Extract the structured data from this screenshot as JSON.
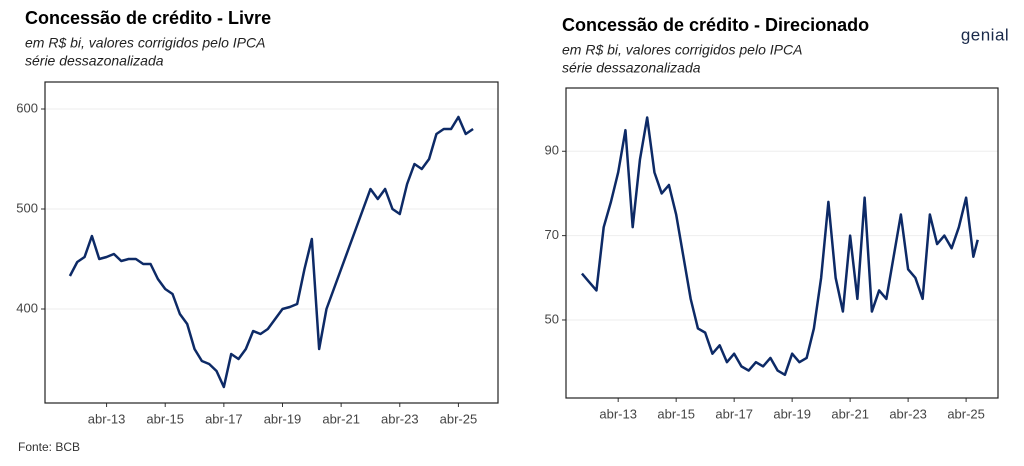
{
  "chart_data": [
    {
      "type": "line",
      "title": "Concessão de crédito - Livre",
      "subtitle": [
        "em R$ bi, valores corrigidos pelo IPCA",
        "série dessazonalizada"
      ],
      "x": [
        2012.0,
        2012.25,
        2012.5,
        2012.75,
        2013.0,
        2013.25,
        2013.5,
        2013.75,
        2014.0,
        2014.25,
        2014.5,
        2014.75,
        2015.0,
        2015.25,
        2015.5,
        2015.75,
        2016.0,
        2016.25,
        2016.5,
        2016.75,
        2017.0,
        2017.25,
        2017.5,
        2017.75,
        2018.0,
        2018.25,
        2018.5,
        2018.75,
        2019.0,
        2019.25,
        2019.5,
        2019.75,
        2020.0,
        2020.25,
        2020.5,
        2020.75,
        2021.0,
        2021.25,
        2021.5,
        2021.75,
        2022.0,
        2022.25,
        2022.5,
        2022.75,
        2023.0,
        2023.25,
        2023.5,
        2023.75,
        2024.0,
        2024.25,
        2024.5,
        2024.75,
        2025.0,
        2025.25,
        2025.5,
        2025.75
      ],
      "values": [
        433,
        447,
        452,
        473,
        450,
        452,
        455,
        448,
        450,
        450,
        445,
        445,
        430,
        420,
        415,
        395,
        385,
        360,
        348,
        345,
        338,
        322,
        355,
        350,
        360,
        378,
        375,
        380,
        390,
        400,
        402,
        405,
        440,
        470,
        360,
        400,
        420,
        440,
        460,
        480,
        500,
        520,
        510,
        520,
        500,
        495,
        525,
        545,
        540,
        550,
        575,
        580,
        580,
        592,
        575,
        580
      ],
      "color": "#0d2a66",
      "xlim": [
        2011.15,
        2026.6
      ],
      "xticks": [
        {
          "value": 2013.25,
          "label": "abr-13"
        },
        {
          "value": 2015.25,
          "label": "abr-15"
        },
        {
          "value": 2017.25,
          "label": "abr-17"
        },
        {
          "value": 2019.25,
          "label": "abr-19"
        },
        {
          "value": 2021.25,
          "label": "abr-21"
        },
        {
          "value": 2023.25,
          "label": "abr-23"
        },
        {
          "value": 2025.25,
          "label": "abr-25"
        }
      ],
      "ylim": [
        306,
        627
      ],
      "yticks": [
        400,
        500,
        600
      ],
      "grid": true
    },
    {
      "type": "line",
      "title": "Concessão de crédito - Direcionado",
      "subtitle": [
        "em R$ bi, valores corrigidos pelo IPCA",
        "série dessazonalizada"
      ],
      "x": [
        2012.0,
        2012.25,
        2012.5,
        2012.75,
        2013.0,
        2013.25,
        2013.5,
        2013.75,
        2014.0,
        2014.25,
        2014.5,
        2014.75,
        2015.0,
        2015.25,
        2015.5,
        2015.75,
        2016.0,
        2016.25,
        2016.5,
        2016.75,
        2017.0,
        2017.25,
        2017.5,
        2017.75,
        2018.0,
        2018.25,
        2018.5,
        2018.75,
        2019.0,
        2019.25,
        2019.5,
        2019.75,
        2020.0,
        2020.25,
        2020.5,
        2020.75,
        2021.0,
        2021.25,
        2021.5,
        2021.75,
        2022.0,
        2022.25,
        2022.5,
        2022.75,
        2023.0,
        2023.25,
        2023.5,
        2023.75,
        2024.0,
        2024.25,
        2024.5,
        2024.75,
        2025.0,
        2025.25,
        2025.5,
        2025.65
      ],
      "values": [
        61,
        59,
        57,
        72,
        78,
        85,
        95,
        72,
        88,
        98,
        85,
        80,
        82,
        75,
        65,
        55,
        48,
        47,
        42,
        44,
        40,
        42,
        39,
        38,
        40,
        39,
        41,
        38,
        37,
        42,
        40,
        41,
        48,
        60,
        78,
        60,
        52,
        70,
        55,
        79,
        52,
        57,
        55,
        65,
        75,
        62,
        60,
        55,
        75,
        68,
        70,
        67,
        72,
        79,
        65,
        69
      ],
      "color": "#0d2a66",
      "xlim": [
        2011.45,
        2026.35
      ],
      "xticks": [
        {
          "value": 2013.25,
          "label": "abr-13"
        },
        {
          "value": 2015.25,
          "label": "abr-15"
        },
        {
          "value": 2017.25,
          "label": "abr-17"
        },
        {
          "value": 2019.25,
          "label": "abr-19"
        },
        {
          "value": 2021.25,
          "label": "abr-21"
        },
        {
          "value": 2023.25,
          "label": "abr-23"
        },
        {
          "value": 2025.25,
          "label": "abr-25"
        }
      ],
      "ylim": [
        31.5,
        105
      ],
      "yticks": [
        50,
        70,
        90
      ],
      "grid": true
    }
  ],
  "source": "Fonte: BCB",
  "logo": "genial"
}
